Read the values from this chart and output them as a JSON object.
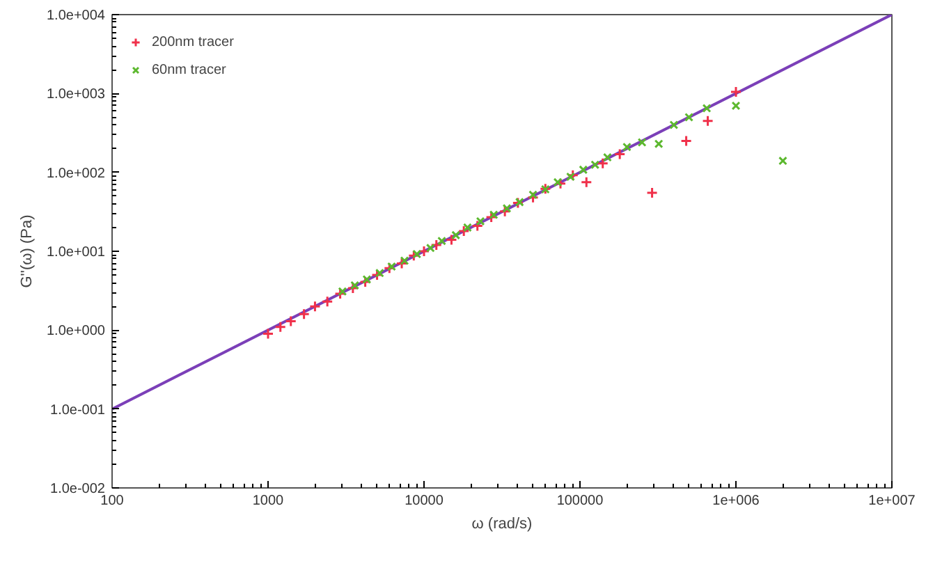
{
  "chart_data": {
    "type": "scatter",
    "xlabel": "ω (rad/s)",
    "ylabel": "G''(ω) (Pa)",
    "log": "xy",
    "grid": false,
    "legend": "top left",
    "xlim": [
      100,
      10000000
    ],
    "ylim": [
      0.01,
      10000
    ],
    "xticks": [
      {
        "value": 100,
        "label": "100"
      },
      {
        "value": 1000,
        "label": "1000"
      },
      {
        "value": 10000,
        "label": "10000"
      },
      {
        "value": 100000,
        "label": "100000"
      },
      {
        "value": 1000000,
        "label": "1e+006"
      },
      {
        "value": 10000000,
        "label": "1e+007"
      }
    ],
    "yticks": [
      {
        "value": 0.01,
        "label": "1.0e-002"
      },
      {
        "value": 0.1,
        "label": "1.0e-001"
      },
      {
        "value": 1,
        "label": "1.0e+000"
      },
      {
        "value": 10,
        "label": "1.0e+001"
      },
      {
        "value": 100,
        "label": "1.0e+002"
      },
      {
        "value": 1000,
        "label": "1.0e+003"
      },
      {
        "value": 10000,
        "label": "1.0e+004"
      }
    ],
    "series": [
      {
        "type": "line",
        "color": "#7b3fb8",
        "x": [
          100,
          10000000
        ],
        "values": [
          0.1,
          10000
        ],
        "marker": "none",
        "line_style": "solid"
      },
      {
        "name": "200nm tracer",
        "color": "#f0304a",
        "marker": "cross",
        "x": [
          1000,
          1200,
          1400,
          1700,
          2000,
          2400,
          2900,
          3500,
          4200,
          5000,
          6000,
          7200,
          8600,
          10000,
          12000,
          15000,
          18000,
          22000,
          27000,
          33000,
          40000,
          50000,
          60000,
          75000,
          90000,
          110000,
          140000,
          180000,
          290000,
          480000,
          660000,
          1000000
        ],
        "values": [
          0.9,
          1.1,
          1.3,
          1.6,
          2.0,
          2.3,
          2.9,
          3.4,
          4.1,
          5.0,
          6.1,
          7.0,
          8.8,
          10,
          12,
          14,
          18,
          21,
          27,
          32,
          41,
          48,
          62,
          72,
          92,
          75,
          130,
          170,
          55,
          250,
          450,
          1050
        ]
      },
      {
        "name": "60nm tracer",
        "color": "#5cb82e",
        "marker": "x",
        "x": [
          3000,
          3600,
          4300,
          5200,
          6200,
          7500,
          9000,
          11000,
          13000,
          16000,
          19000,
          23000,
          28000,
          34000,
          41000,
          50000,
          60000,
          72000,
          87000,
          105000,
          125000,
          150000,
          200000,
          250000,
          320000,
          400000,
          500000,
          650000,
          1000000,
          2000000
        ],
        "values": [
          3.1,
          3.7,
          4.4,
          5.3,
          6.4,
          7.6,
          9.2,
          11,
          13.5,
          16,
          20,
          24,
          29,
          35,
          42,
          52,
          61,
          75,
          88,
          108,
          125,
          155,
          210,
          240,
          230,
          400,
          500,
          650,
          700,
          140
        ]
      }
    ]
  }
}
